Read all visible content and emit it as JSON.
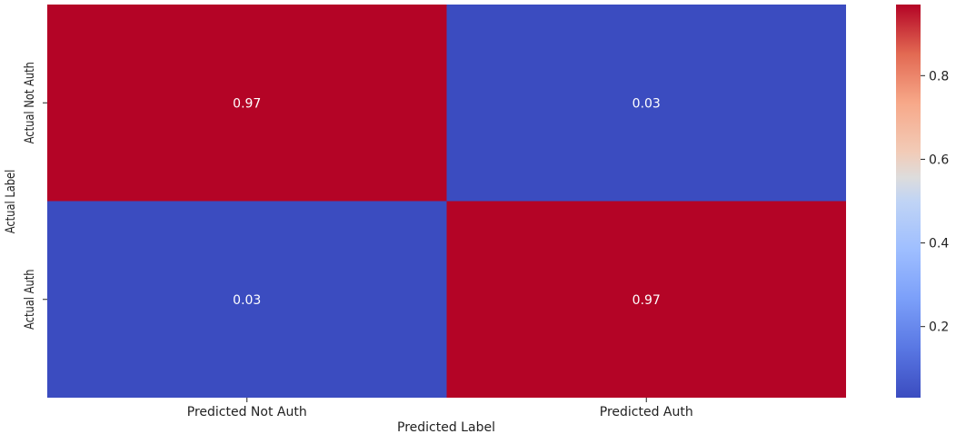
{
  "chart_data": {
    "type": "heatmap",
    "title": "",
    "xlabel": "Predicted Label",
    "ylabel": "Actual Label",
    "x_categories": [
      "Predicted Not Auth",
      "Predicted Auth"
    ],
    "y_categories": [
      "Actual Not Auth",
      "Actual Auth"
    ],
    "values": [
      [
        0.97,
        0.03
      ],
      [
        0.03,
        0.97
      ]
    ],
    "cell_labels": [
      [
        "0.97",
        "0.03"
      ],
      [
        "0.03",
        "0.97"
      ]
    ],
    "colormap": "coolwarm",
    "colorbar": {
      "range": [
        0.03,
        0.97
      ],
      "ticks": [
        0.2,
        0.4,
        0.6,
        0.8
      ],
      "tick_labels": [
        "0.2",
        "0.4",
        "0.6",
        "0.8"
      ]
    },
    "colors": {
      "high": "#b40426",
      "low": "#3b4cc0",
      "mid": "#dddddd"
    }
  }
}
